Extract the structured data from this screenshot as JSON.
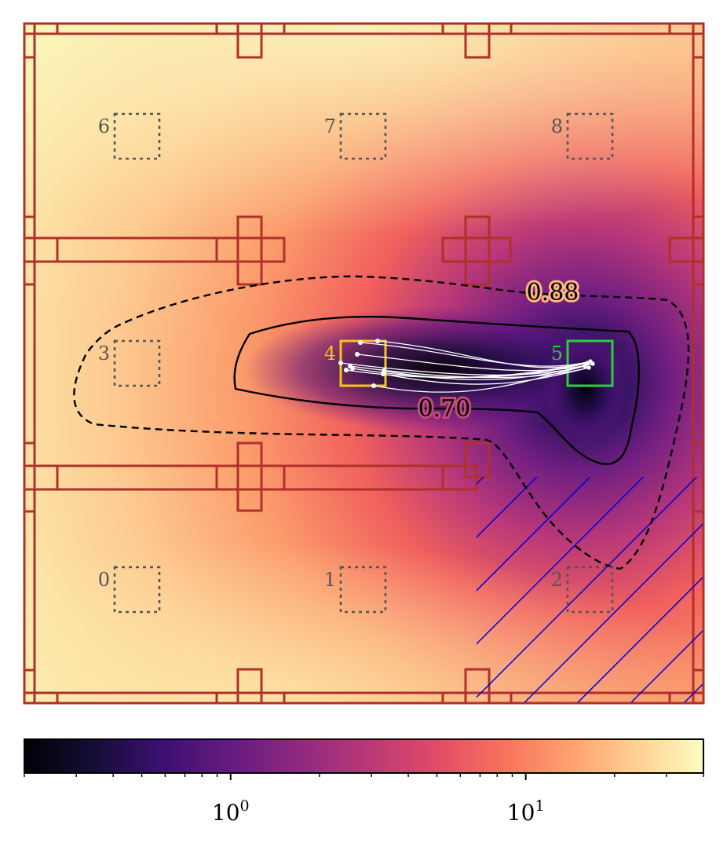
{
  "chart_data": {
    "type": "heatmap",
    "title": "",
    "xlabel": "",
    "ylabel": "",
    "colormap": "magma",
    "colorbar": {
      "scale": "log",
      "vmin": 0.2,
      "vmax": 40,
      "major_ticks": [
        {
          "value": 1,
          "base": "10",
          "exp": "0"
        },
        {
          "value": 10,
          "base": "10",
          "exp": "1"
        }
      ]
    },
    "contours": [
      {
        "level": 0.88,
        "label": "0.88",
        "style": "dashed"
      },
      {
        "level": 0.7,
        "label": "0.70",
        "style": "solid"
      }
    ],
    "regions": [
      {
        "id": "0",
        "style": "dotted"
      },
      {
        "id": "1",
        "style": "dotted"
      },
      {
        "id": "2",
        "style": "dotted"
      },
      {
        "id": "3",
        "style": "dotted"
      },
      {
        "id": "4",
        "style": "start",
        "color": "#f5c518"
      },
      {
        "id": "5",
        "style": "goal",
        "color": "#2ecc40"
      },
      {
        "id": "6",
        "style": "dotted"
      },
      {
        "id": "7",
        "style": "dotted"
      },
      {
        "id": "8",
        "style": "dotted"
      }
    ],
    "hatched_region": {
      "color": "#0000dd"
    },
    "wall_color": "#b0302a",
    "trajectory_count": 10,
    "trajectory_color": "#ffffff"
  }
}
